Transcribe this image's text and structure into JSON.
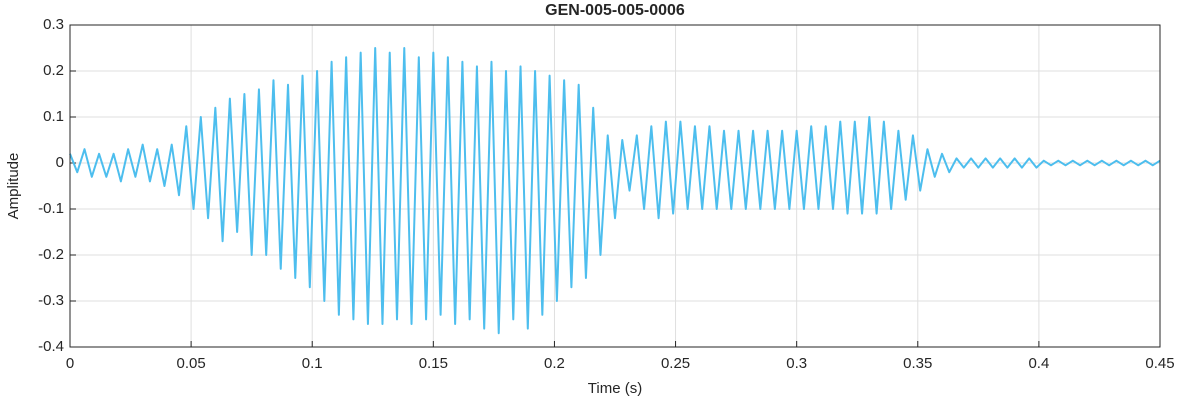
{
  "chart_data": {
    "type": "line",
    "title": "GEN-005-005-0006",
    "x_label": "Time (s)",
    "y_label": "Amplitude",
    "xlim": [
      0,
      0.45
    ],
    "xticks": [
      0,
      0.05,
      0.1,
      0.15,
      0.2,
      0.25,
      0.3,
      0.35,
      0.4,
      0.45
    ],
    "ylim": [
      -0.4,
      0.3
    ],
    "yticks": [
      -0.4,
      -0.3,
      -0.2,
      -0.1,
      0,
      0.1,
      0.2,
      0.3
    ],
    "grid": true,
    "x": [
      0,
      0.003,
      0.006,
      0.009,
      0.012,
      0.015,
      0.018,
      0.021,
      0.024,
      0.027,
      0.03,
      0.033,
      0.036,
      0.039,
      0.042,
      0.045,
      0.048,
      0.051,
      0.054,
      0.057,
      0.06,
      0.063,
      0.066,
      0.069,
      0.072,
      0.075,
      0.078,
      0.081,
      0.084,
      0.087,
      0.09,
      0.093,
      0.096,
      0.099,
      0.102,
      0.105,
      0.108,
      0.111,
      0.114,
      0.117,
      0.12,
      0.123,
      0.126,
      0.129,
      0.132,
      0.135,
      0.138,
      0.141,
      0.144,
      0.147,
      0.15,
      0.153,
      0.156,
      0.159,
      0.162,
      0.165,
      0.168,
      0.171,
      0.174,
      0.177,
      0.18,
      0.183,
      0.186,
      0.189,
      0.192,
      0.195,
      0.198,
      0.201,
      0.204,
      0.207,
      0.21,
      0.213,
      0.216,
      0.219,
      0.222,
      0.225,
      0.228,
      0.231,
      0.234,
      0.237,
      0.24,
      0.243,
      0.246,
      0.249,
      0.252,
      0.255,
      0.258,
      0.261,
      0.264,
      0.267,
      0.27,
      0.273,
      0.276,
      0.279,
      0.282,
      0.285,
      0.288,
      0.291,
      0.294,
      0.297,
      0.3,
      0.303,
      0.306,
      0.309,
      0.312,
      0.315,
      0.318,
      0.321,
      0.324,
      0.327,
      0.33,
      0.333,
      0.336,
      0.339,
      0.342,
      0.345,
      0.348,
      0.351,
      0.354,
      0.357,
      0.36,
      0.363,
      0.366,
      0.369,
      0.372,
      0.375,
      0.378,
      0.381,
      0.384,
      0.387,
      0.39,
      0.393,
      0.396,
      0.399,
      0.402,
      0.405,
      0.408,
      0.411,
      0.414,
      0.417,
      0.42,
      0.423,
      0.426,
      0.429,
      0.432,
      0.435,
      0.438,
      0.441,
      0.444,
      0.447,
      0.45
    ],
    "series": [
      {
        "color": "#4dbeee",
        "values": [
          0.02,
          -0.02,
          0.03,
          -0.03,
          0.02,
          -0.03,
          0.02,
          -0.04,
          0.03,
          -0.03,
          0.04,
          -0.04,
          0.03,
          -0.05,
          0.04,
          -0.07,
          0.08,
          -0.1,
          0.1,
          -0.12,
          0.12,
          -0.17,
          0.14,
          -0.15,
          0.15,
          -0.2,
          0.16,
          -0.2,
          0.18,
          -0.23,
          0.17,
          -0.25,
          0.19,
          -0.27,
          0.2,
          -0.3,
          0.22,
          -0.33,
          0.23,
          -0.34,
          0.24,
          -0.35,
          0.25,
          -0.35,
          0.24,
          -0.34,
          0.25,
          -0.35,
          0.23,
          -0.34,
          0.24,
          -0.33,
          0.23,
          -0.35,
          0.22,
          -0.34,
          0.21,
          -0.36,
          0.22,
          -0.37,
          0.2,
          -0.34,
          0.21,
          -0.36,
          0.2,
          -0.33,
          0.19,
          -0.3,
          0.18,
          -0.27,
          0.17,
          -0.25,
          0.12,
          -0.2,
          0.06,
          -0.12,
          0.05,
          -0.06,
          0.06,
          -0.1,
          0.08,
          -0.12,
          0.09,
          -0.11,
          0.09,
          -0.1,
          0.08,
          -0.1,
          0.08,
          -0.1,
          0.07,
          -0.1,
          0.07,
          -0.1,
          0.07,
          -0.1,
          0.07,
          -0.1,
          0.07,
          -0.1,
          0.07,
          -0.1,
          0.08,
          -0.1,
          0.08,
          -0.1,
          0.09,
          -0.11,
          0.09,
          -0.11,
          0.1,
          -0.11,
          0.09,
          -0.1,
          0.07,
          -0.08,
          0.06,
          -0.06,
          0.03,
          -0.03,
          0.02,
          -0.02,
          0.01,
          -0.01,
          0.01,
          -0.01,
          0.01,
          -0.01,
          0.01,
          -0.01,
          0.01,
          -0.01,
          0.01,
          -0.01,
          0.005,
          -0.005,
          0.005,
          -0.005,
          0.005,
          -0.005,
          0.005,
          -0.005,
          0.005,
          -0.005,
          0.005,
          -0.005,
          0.005,
          -0.005,
          0.005,
          -0.005,
          0.005
        ]
      }
    ]
  }
}
